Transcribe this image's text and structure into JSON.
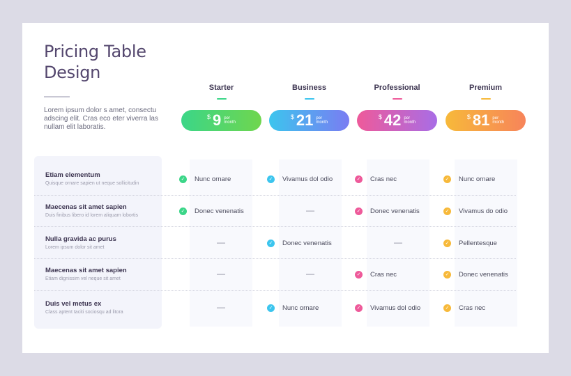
{
  "title_lines": [
    "Pricing Table",
    "Design"
  ],
  "intro": "Lorem ipsum dolor s amet, consectu adscing elit. Cras eco eter viverra las nullam elit laboratis.",
  "plans": [
    {
      "name": "Starter",
      "currency": "$",
      "price": "9",
      "unit_top": "per",
      "unit_bottom": "month",
      "color": "#3bd688"
    },
    {
      "name": "Business",
      "currency": "$",
      "price": "21",
      "unit_top": "per",
      "unit_bottom": "month",
      "color": "#3cc5ee"
    },
    {
      "name": "Professional",
      "currency": "$",
      "price": "42",
      "unit_top": "per",
      "unit_bottom": "month",
      "color": "#ee5a9a"
    },
    {
      "name": "Premium",
      "currency": "$",
      "price": "81",
      "unit_top": "per",
      "unit_bottom": "month",
      "color": "#f7b93a"
    }
  ],
  "rows": [
    {
      "title": "Etiam elementum",
      "subtitle": "Quisque ornare sapien ut neque sollicitudin",
      "cells": [
        "Nunc ornare",
        "Vivamus dol odio",
        "Cras nec",
        "Nunc ornare"
      ]
    },
    {
      "title": "Maecenas sit amet sapien",
      "subtitle": "Duis finibus libero id lorem aliquam lobortis",
      "cells": [
        "Donec venenatis",
        "—",
        "Donec venenatis",
        "Vivamus do odio"
      ]
    },
    {
      "title": "Nulla gravida ac purus",
      "subtitle": "Lorem ipsum dolor sit amet",
      "cells": [
        "—",
        "Donec venenatis",
        "—",
        "Pellentesque"
      ]
    },
    {
      "title": "Maecenas sit amet sapien",
      "subtitle": "Etiam dignissim vel neque sit amet",
      "cells": [
        "—",
        "—",
        "Cras nec",
        "Donec venenatis"
      ]
    },
    {
      "title": "Duis vel metus ex",
      "subtitle": "Class aptent taciti sociosqu ad litora",
      "cells": [
        "—",
        "Nunc ornare",
        "Vivamus dol odio",
        "Cras nec"
      ]
    }
  ]
}
